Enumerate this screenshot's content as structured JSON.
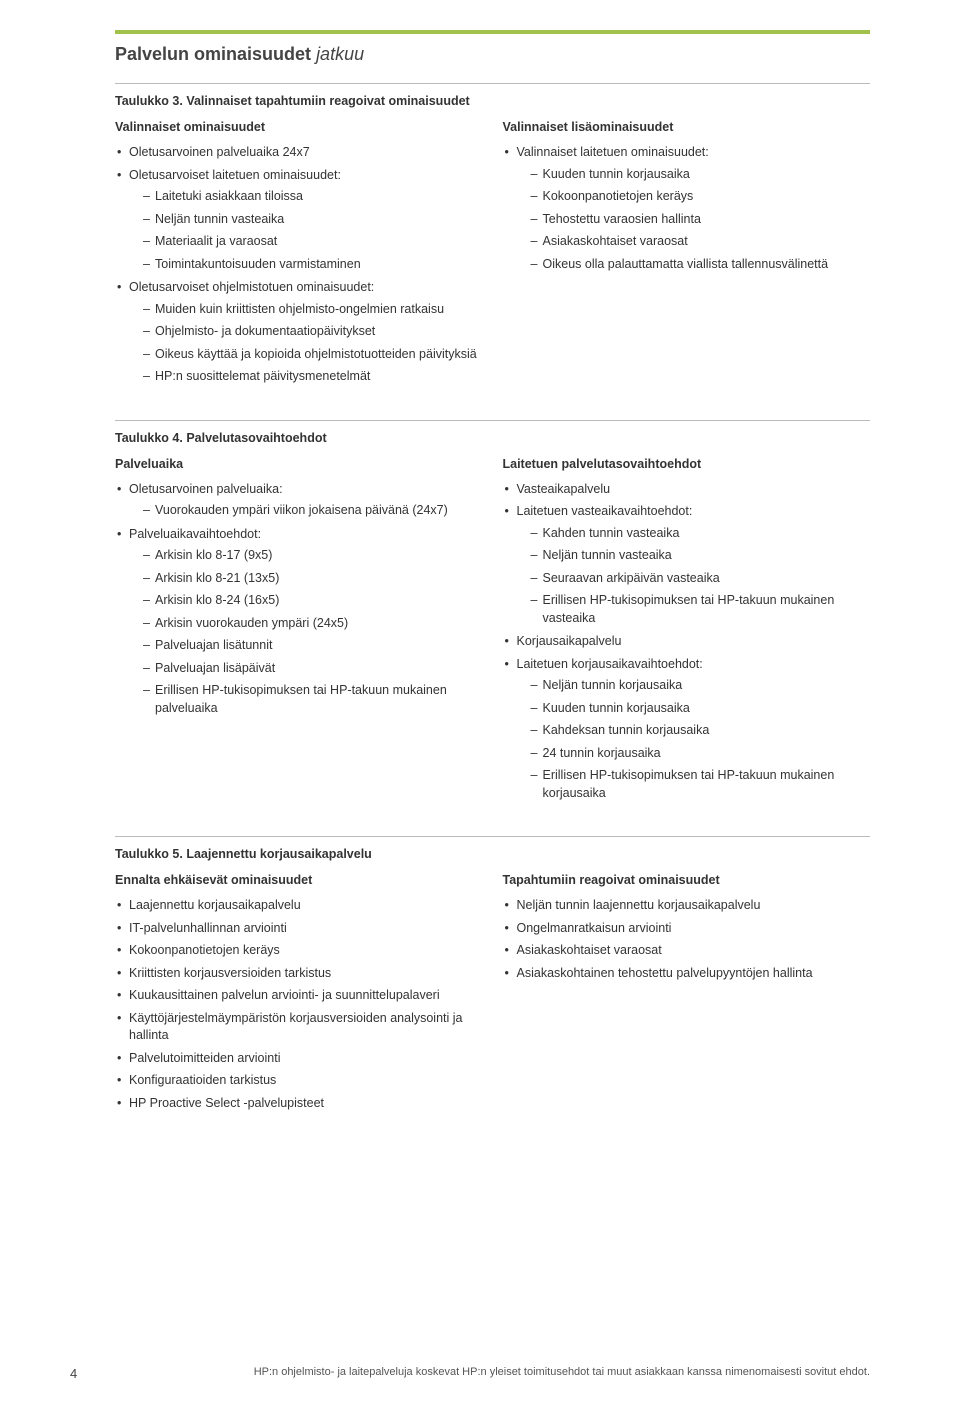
{
  "page": {
    "title": "Palvelun ominaisuudet",
    "title_suffix": "jatkuu",
    "page_number": "4",
    "footer_text": "HP:n ohjelmisto- ja laitepalveluja koskevat HP:n yleiset toimitusehdot tai muut asiakkaan kanssa nimenomaisesti sovitut ehdot."
  },
  "table3": {
    "title": "Taulukko 3. Valinnaiset tapahtumiin reagoivat ominaisuudet",
    "left": {
      "heading": "Valinnaiset ominaisuudet",
      "items": [
        {
          "text": "Oletusarvoinen palveluaika 24x7"
        },
        {
          "text": "Oletusarvoiset laitetuen ominaisuudet:",
          "sub": [
            "Laitetuki asiakkaan tiloissa",
            "Neljän tunnin vasteaika",
            "Materiaalit ja varaosat",
            "Toimintakuntoisuuden varmistaminen"
          ]
        },
        {
          "text": "Oletusarvoiset ohjelmistotuen ominaisuudet:",
          "sub": [
            "Muiden kuin kriittisten ohjelmisto-ongelmien ratkaisu",
            "Ohjelmisto- ja dokumentaatiopäivitykset",
            "Oikeus käyttää ja kopioida ohjelmistotuotteiden päivityksiä",
            "HP:n suosittelemat päivitysmenetelmät"
          ]
        }
      ]
    },
    "right": {
      "heading": "Valinnaiset lisäominaisuudet",
      "items": [
        {
          "text": "Valinnaiset laitetuen ominaisuudet:",
          "sub": [
            "Kuuden tunnin korjausaika",
            "Kokoonpanotietojen keräys",
            "Tehostettu varaosien hallinta",
            "Asiakaskohtaiset varaosat",
            "Oikeus olla palauttamatta viallista tallennusvälinettä"
          ]
        }
      ]
    }
  },
  "table4": {
    "title": "Taulukko 4. Palvelutasovaihtoehdot",
    "left": {
      "heading": "Palveluaika",
      "items": [
        {
          "text": "Oletusarvoinen palveluaika:",
          "sub": [
            "Vuorokauden ympäri viikon jokaisena päivänä (24x7)"
          ]
        },
        {
          "text": "Palveluaikavaihtoehdot:",
          "sub": [
            "Arkisin klo 8-17 (9x5)",
            "Arkisin klo 8-21 (13x5)",
            "Arkisin klo 8-24 (16x5)",
            "Arkisin vuorokauden ympäri (24x5)",
            "Palveluajan lisätunnit",
            "Palveluajan lisäpäivät",
            "Erillisen HP-tukisopimuksen tai HP-takuun mukainen palveluaika"
          ]
        }
      ]
    },
    "right": {
      "heading": "Laitetuen palvelutasovaihtoehdot",
      "items": [
        {
          "text": "Vasteaikapalvelu"
        },
        {
          "text": "Laitetuen vasteaikavaihtoehdot:",
          "sub": [
            "Kahden tunnin vasteaika",
            "Neljän tunnin vasteaika",
            "Seuraavan arkipäivän vasteaika",
            "Erillisen HP-tukisopimuksen tai HP-takuun mukainen vasteaika"
          ]
        },
        {
          "text": "Korjausaikapalvelu"
        },
        {
          "text": "Laitetuen korjausaikavaihtoehdot:",
          "sub": [
            "Neljän tunnin korjausaika",
            "Kuuden tunnin korjausaika",
            "Kahdeksan tunnin korjausaika",
            "24 tunnin korjausaika",
            "Erillisen HP-tukisopimuksen tai HP-takuun mukainen korjausaika"
          ]
        }
      ]
    }
  },
  "table5": {
    "title": "Taulukko 5. Laajennettu korjausaikapalvelu",
    "left": {
      "heading": "Ennalta ehkäisevät ominaisuudet",
      "items": [
        {
          "text": "Laajennettu korjausaikapalvelu"
        },
        {
          "text": "IT-palvelunhallinnan arviointi"
        },
        {
          "text": "Kokoonpanotietojen keräys"
        },
        {
          "text": "Kriittisten korjausversioiden tarkistus"
        },
        {
          "text": "Kuukausittainen palvelun arviointi- ja suunnittelupalaveri"
        },
        {
          "text": "Käyttöjärjestelmäympäristön korjausversioiden analysointi ja hallinta"
        },
        {
          "text": "Palvelutoimitteiden arviointi"
        },
        {
          "text": "Konfiguraatioiden tarkistus"
        },
        {
          "text": "HP Proactive Select -palvelupisteet"
        }
      ]
    },
    "right": {
      "heading": "Tapahtumiin reagoivat ominaisuudet",
      "items": [
        {
          "text": "Neljän tunnin laajennettu korjausaikapalvelu"
        },
        {
          "text": "Ongelmanratkaisun arviointi"
        },
        {
          "text": "Asiakaskohtaiset varaosat"
        },
        {
          "text": "Asiakaskohtainen tehostettu palvelupyyntöjen hallinta"
        }
      ]
    }
  }
}
